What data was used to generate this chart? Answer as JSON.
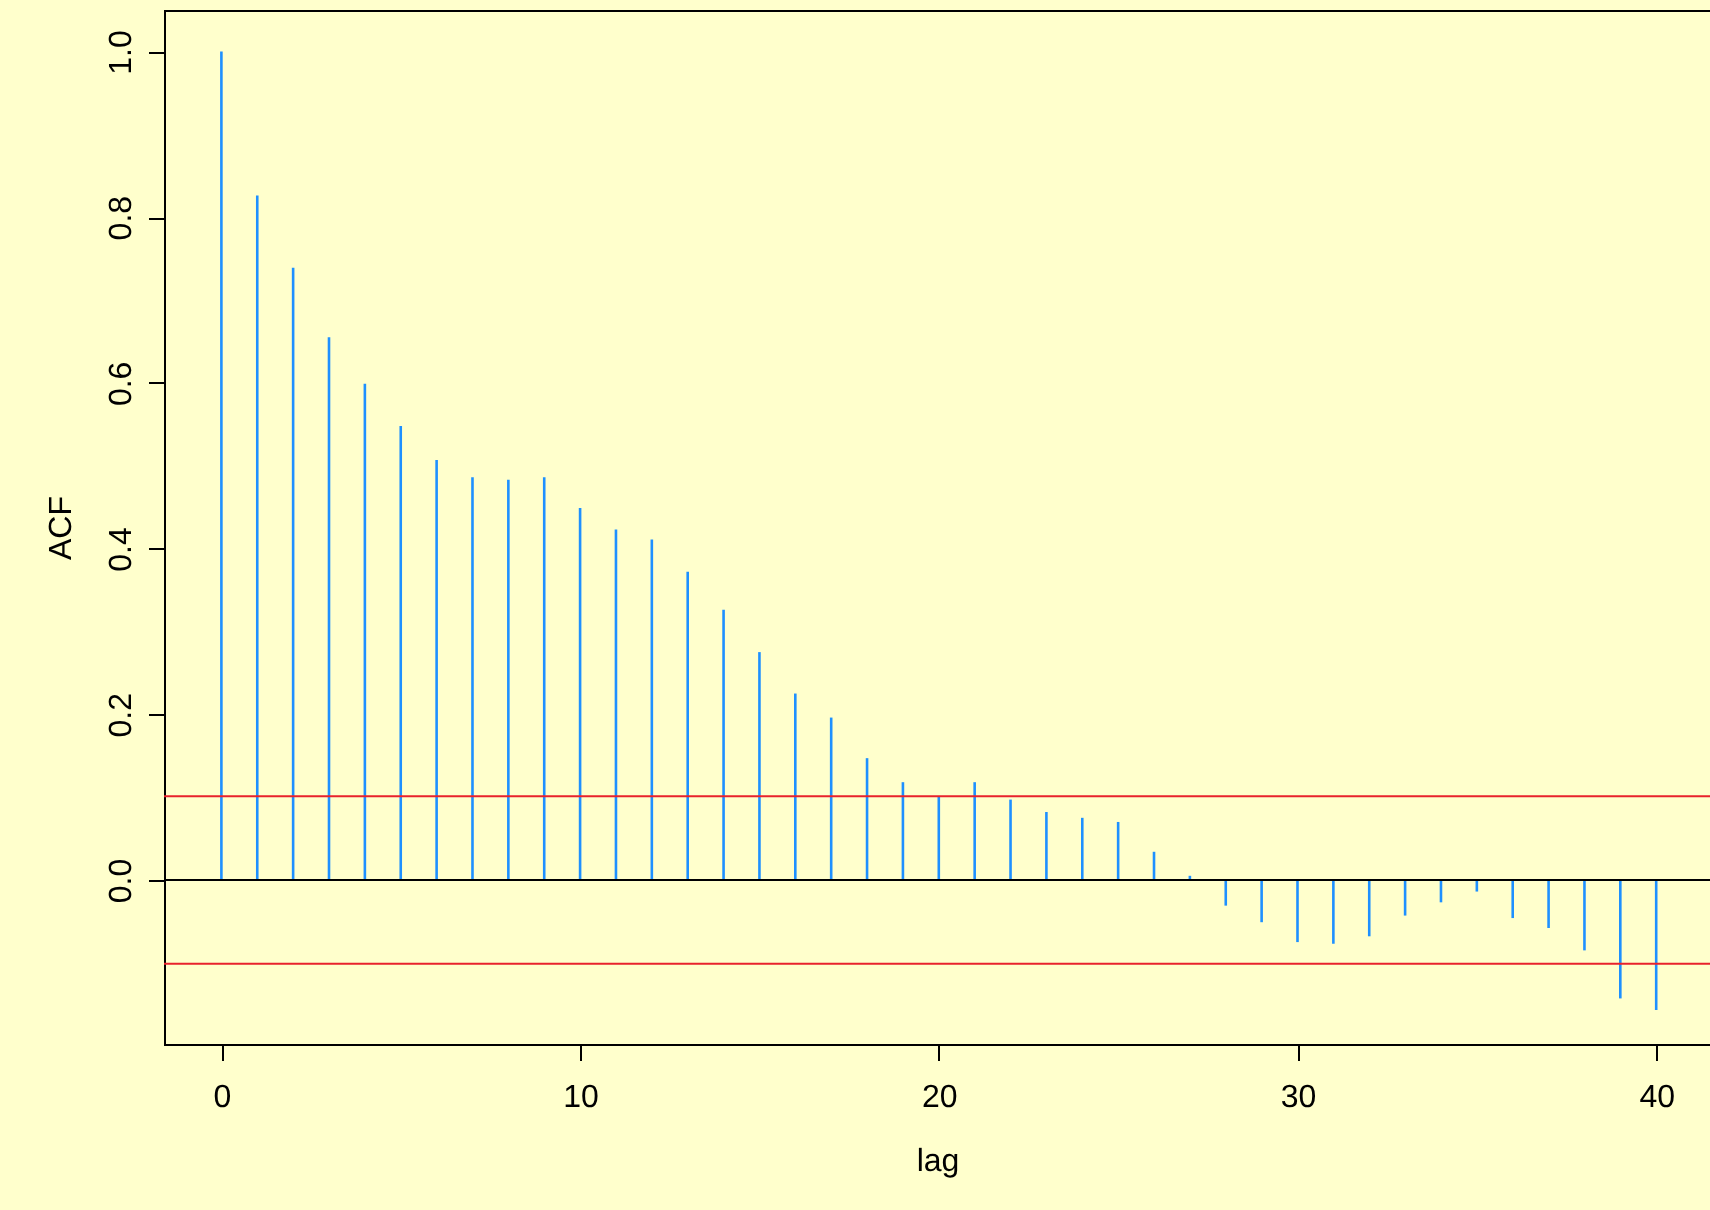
{
  "chart_data": {
    "type": "bar",
    "xlabel": "lag",
    "ylabel": "ACF",
    "x": [
      0,
      1,
      2,
      3,
      4,
      5,
      6,
      7,
      8,
      9,
      10,
      11,
      12,
      13,
      14,
      15,
      16,
      17,
      18,
      19,
      20,
      21,
      22,
      23,
      24,
      25,
      26,
      27,
      28,
      29,
      30,
      31,
      32,
      33,
      34,
      35,
      36,
      37,
      38,
      39,
      40
    ],
    "series": [
      {
        "color": "#1e90ff",
        "values": [
          1.0,
          0.826,
          0.739,
          0.655,
          0.599,
          0.548,
          0.507,
          0.486,
          0.483,
          0.486,
          0.449,
          0.423,
          0.411,
          0.372,
          0.326,
          0.275,
          0.225,
          0.196,
          0.147,
          0.118,
          0.101,
          0.118,
          0.097,
          0.082,
          0.075,
          0.07,
          0.034,
          0.005,
          -0.031,
          -0.051,
          -0.075,
          -0.077,
          -0.068,
          -0.043,
          -0.027,
          -0.014,
          -0.046,
          -0.058,
          -0.085,
          -0.143,
          -0.157
        ]
      }
    ],
    "xlim": [
      -1.6,
      41.5
    ],
    "xticks": [
      0,
      10,
      20,
      30,
      40
    ],
    "ylim": [
      -0.198,
      1.05
    ],
    "yticks": [
      {
        "value": 0,
        "label": "0.0"
      },
      0.2,
      0.4,
      0.6,
      0.8,
      {
        "value": 1,
        "label": "1.0"
      }
    ],
    "ref_lines": [
      {
        "axis": "y",
        "value": 0,
        "color": "#000000"
      },
      {
        "axis": "y",
        "value": 0.101,
        "color": "#e8222c"
      },
      {
        "axis": "y",
        "value": -0.101,
        "color": "#e8222c"
      }
    ],
    "grid": false
  }
}
